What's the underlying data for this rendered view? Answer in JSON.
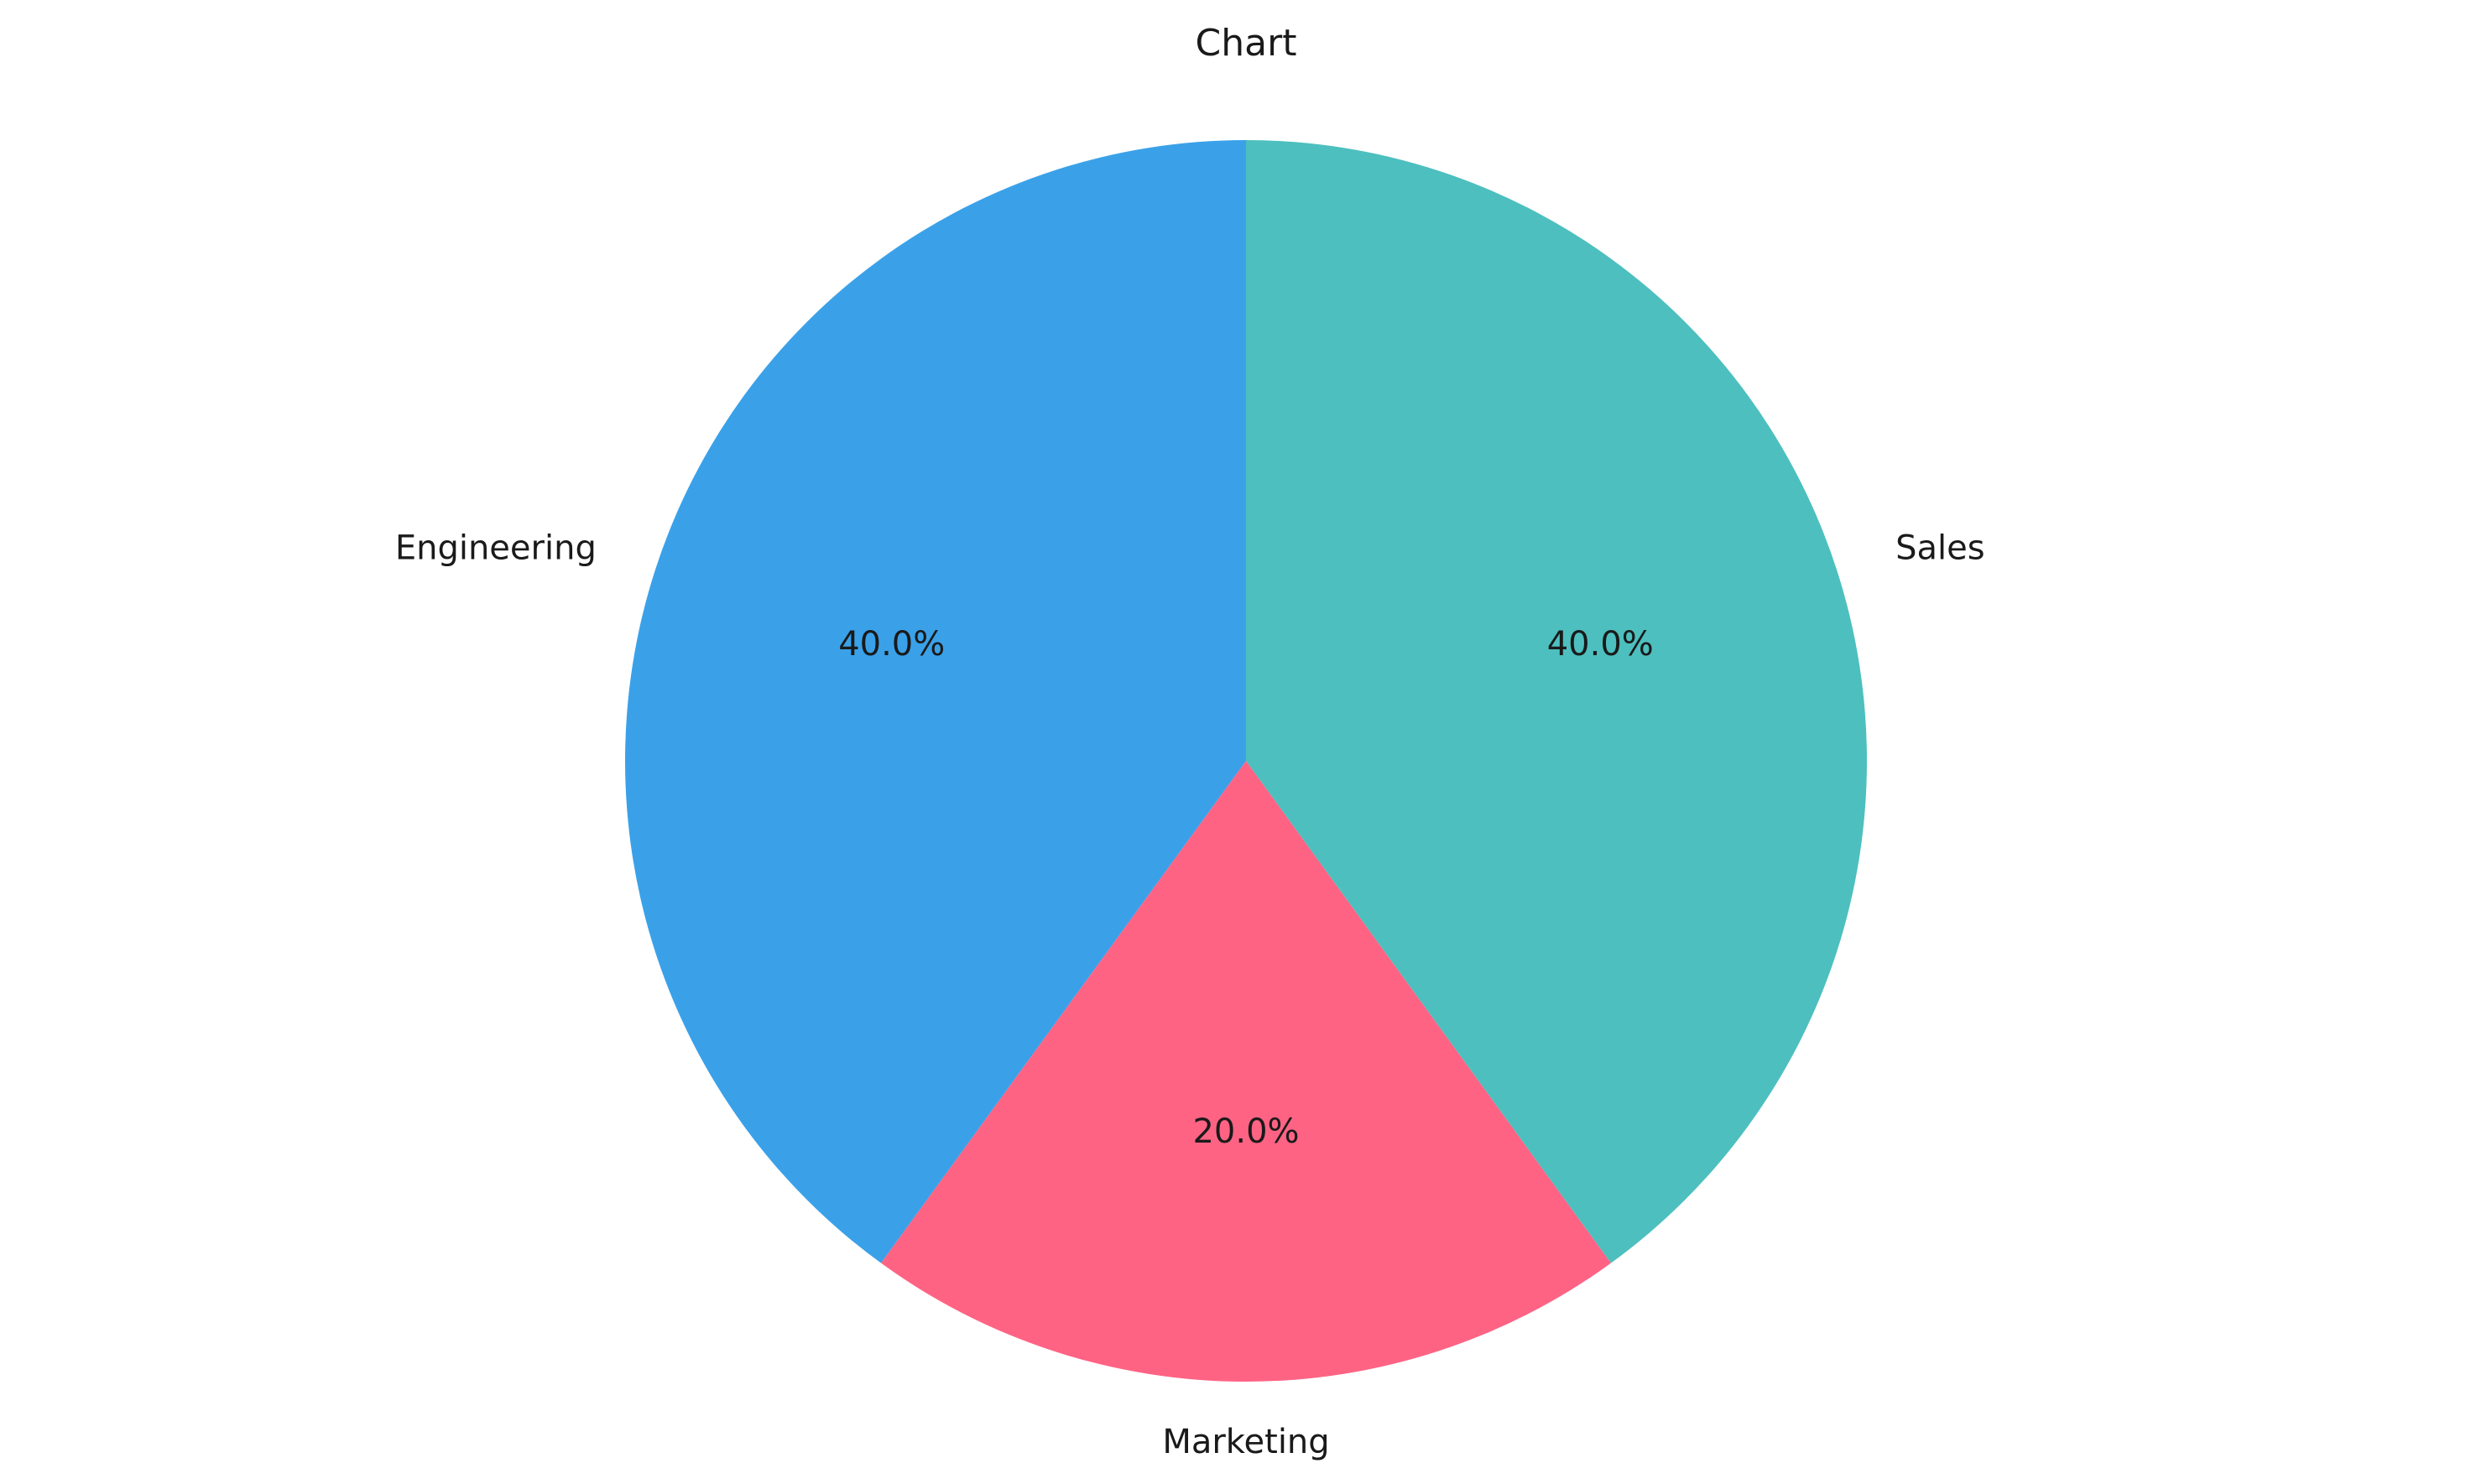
{
  "chart_data": {
    "type": "pie",
    "title": "Chart",
    "categories": [
      "Engineering",
      "Marketing",
      "Sales"
    ],
    "values": [
      40,
      20,
      40
    ],
    "percent_labels": [
      "40.0%",
      "20.0%",
      "40.0%"
    ],
    "colors": [
      "#3aa1e9",
      "#ff6384",
      "#4dbfbf"
    ],
    "start_angle_deg": 90,
    "direction": "counterclockwise"
  }
}
